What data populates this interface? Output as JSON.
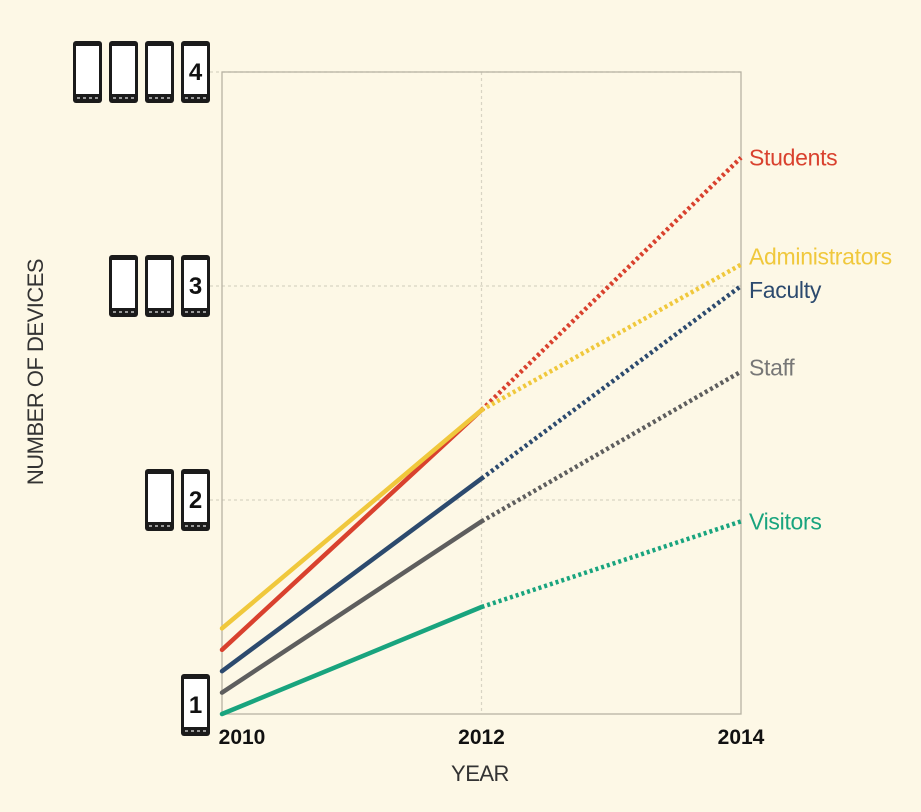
{
  "chart_data": {
    "type": "line",
    "xlabel": "YEAR",
    "ylabel": "NUMBER OF DEVICES",
    "x_ticks": [
      "2010",
      "2012",
      "2014"
    ],
    "y_ticks": [
      "1",
      "2",
      "3",
      "4"
    ],
    "xlim": [
      2010,
      2014
    ],
    "ylim": [
      1,
      4
    ],
    "grid": true,
    "legend": "inline labels at line ends (right)",
    "line_style_note": "solid for 2010-2012, dotted for 2012-2014",
    "series": [
      {
        "name": "Students",
        "color": "#d9412e",
        "x": [
          2010,
          2012,
          2014
        ],
        "y": [
          1.3,
          2.42,
          3.6
        ]
      },
      {
        "name": "Administrators",
        "color": "#f0c83c",
        "x": [
          2010,
          2012,
          2014
        ],
        "y": [
          1.4,
          2.42,
          3.1
        ]
      },
      {
        "name": "Faculty",
        "color": "#2c4a6e",
        "x": [
          2010,
          2012,
          2014
        ],
        "y": [
          1.2,
          2.1,
          3.0
        ]
      },
      {
        "name": "Staff",
        "color": "#5e5e5e",
        "x": [
          2010,
          2012,
          2014
        ],
        "y": [
          1.1,
          1.9,
          2.6
        ]
      },
      {
        "name": "Visitors",
        "color": "#19a47e",
        "x": [
          2010,
          2012,
          2014
        ],
        "y": [
          1.0,
          1.5,
          1.9
        ]
      }
    ],
    "series_label_colors": {
      "Students": "#d9412e",
      "Administrators": "#f0c83c",
      "Faculty": "#2c4a6e",
      "Staff": "#777777",
      "Visitors": "#19a47e"
    }
  }
}
